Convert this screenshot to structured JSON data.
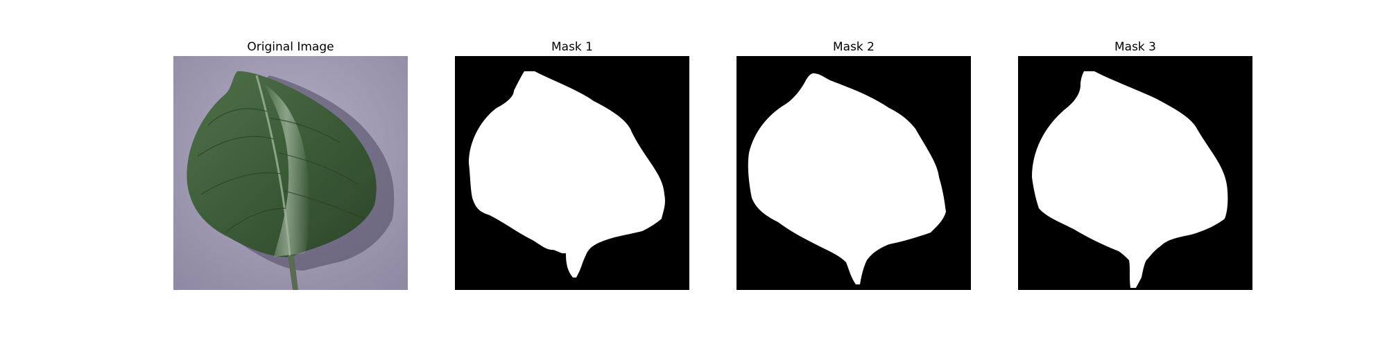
{
  "panels": [
    {
      "title": "Original Image",
      "kind": "photo",
      "subject": "leaf"
    },
    {
      "title": "Mask 1",
      "kind": "mask"
    },
    {
      "title": "Mask 2",
      "kind": "mask"
    },
    {
      "title": "Mask 3",
      "kind": "mask"
    }
  ],
  "colors": {
    "background": "#ffffff",
    "mask_foreground": "#ffffff",
    "mask_background": "#000000",
    "leaf": "#3f5f3c",
    "surface": "#a49fb6"
  }
}
